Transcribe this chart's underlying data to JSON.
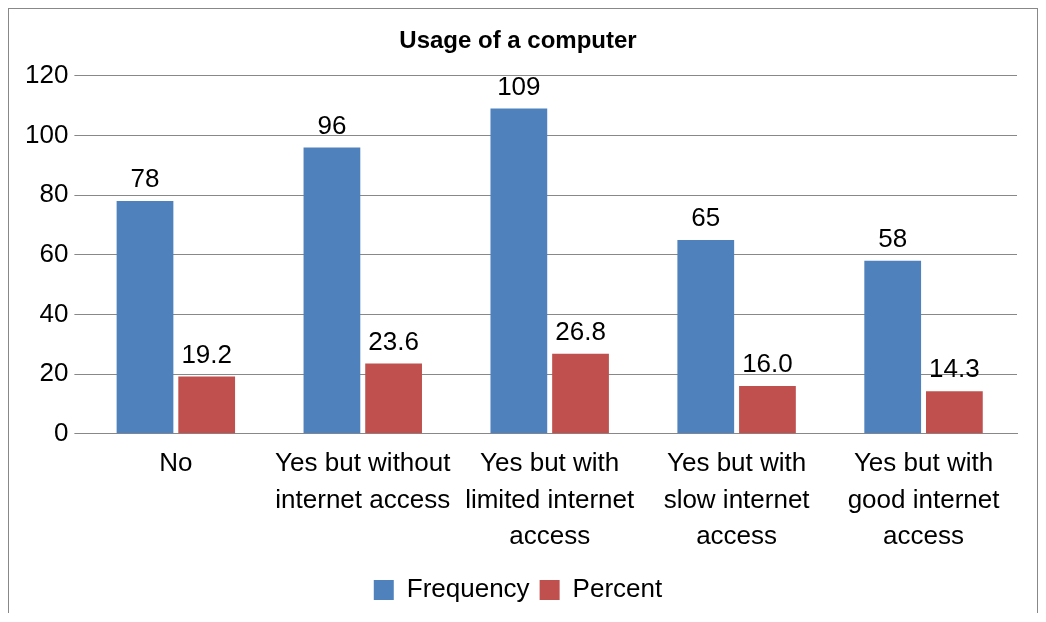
{
  "chart_data": {
    "type": "bar",
    "title": "Usage of a computer",
    "categories": [
      "No",
      "Yes but without internet access",
      "Yes but with limited internet access",
      "Yes but with slow internet access",
      "Yes but with good internet access"
    ],
    "series": [
      {
        "name": "Frequency",
        "color": "#4f81bd",
        "values": [
          78,
          96,
          109,
          65,
          58
        ],
        "value_labels": [
          "78",
          "96",
          "109",
          "65",
          "58"
        ]
      },
      {
        "name": "Percent",
        "color": "#c0504d",
        "values": [
          19.2,
          23.6,
          26.8,
          16.0,
          14.3
        ],
        "value_labels": [
          "19.2",
          "23.6",
          "26.8",
          "16.0",
          "14.3"
        ]
      }
    ],
    "ylim": [
      0,
      120
    ],
    "yticks": [
      0,
      20,
      40,
      60,
      80,
      100,
      120
    ],
    "grid": "y",
    "legend": "bottom"
  }
}
